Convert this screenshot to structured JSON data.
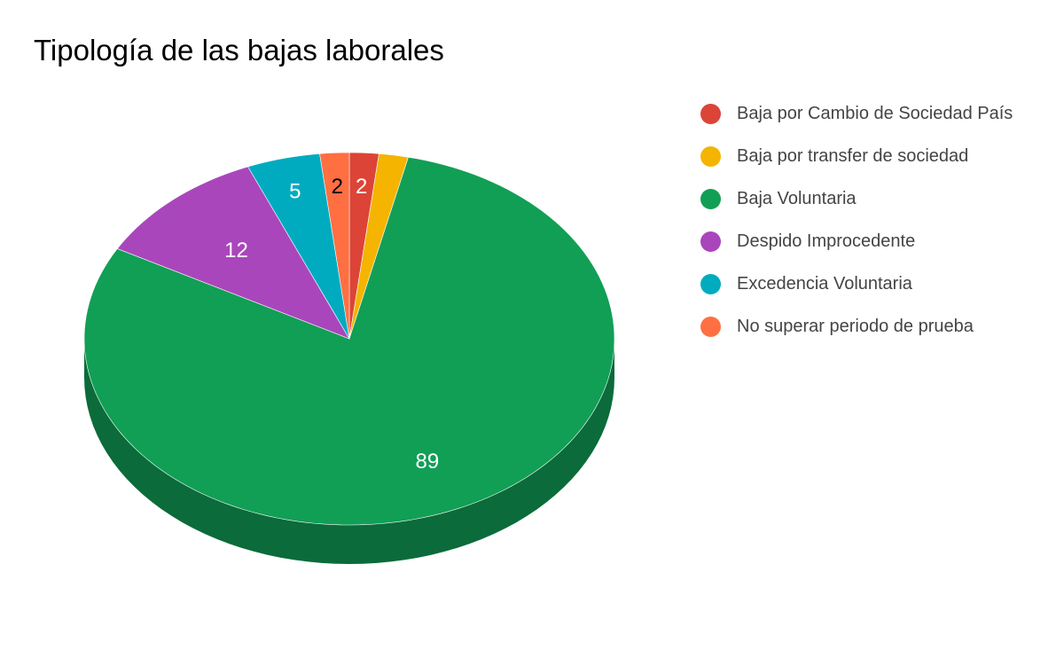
{
  "chart_data": {
    "type": "pie",
    "title": "Tipología de las bajas laborales",
    "style": "3d",
    "legend_position": "right",
    "categories": [
      "Baja por Cambio de Sociedad País",
      "Baja por transfer de sociedad",
      "Baja Voluntaria",
      "Despido Improcedente",
      "Excedencia Voluntaria",
      "No superar periodo de prueba"
    ],
    "values": [
      2,
      2,
      89,
      12,
      5,
      2
    ],
    "data_labels": [
      "2",
      "",
      "89",
      "12",
      "5",
      "2"
    ],
    "colors": [
      "#dc4437",
      "#f4b400",
      "#119f55",
      "#aa46bb",
      "#00abc0",
      "#ff6f42"
    ],
    "side_colors": [
      "#a8332a",
      "#b88700",
      "#0b6b3a",
      "#7e3490",
      "#00808f",
      "#c2542f"
    ],
    "label_colors": [
      "#ffffff",
      "#ffffff",
      "#ffffff",
      "#ffffff",
      "#ffffff",
      "#000000"
    ]
  }
}
